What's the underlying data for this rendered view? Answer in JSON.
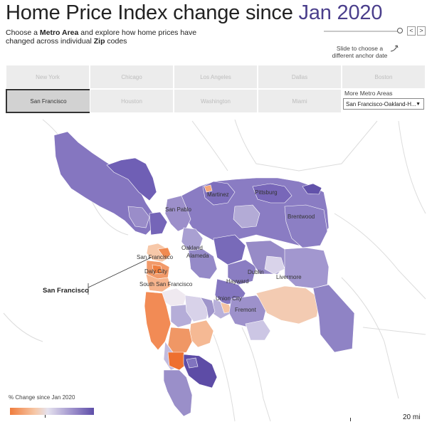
{
  "header": {
    "title_prefix": "Home Price Index change since",
    "anchor_date": "Jan 2020",
    "subtitle_p1": "Choose a ",
    "subtitle_b1": "Metro Area",
    "subtitle_p2": " and explore how home prices have changed across individual ",
    "subtitle_b2": "Zip",
    "subtitle_p3": " codes"
  },
  "slider": {
    "hint_line1": "Slide to choose a",
    "hint_line2": "different anchor date",
    "prev_label": "<",
    "next_label": ">"
  },
  "metros": {
    "row1": [
      "New York",
      "Chicago",
      "Los Angeles",
      "Dallas",
      "Boston"
    ],
    "row2": [
      "San Francisco",
      "Houston",
      "Washington",
      "Miami"
    ],
    "selected": "San Francisco"
  },
  "more_metros": {
    "label": "More Metro Areas",
    "selected_value": "San Francisco-Oakland-H..."
  },
  "map": {
    "cities": [
      "Martinez",
      "Pittsburg",
      "San Pablo",
      "Brentwood",
      "Oakland",
      "Alameda",
      "San Francisco",
      "Daly City",
      "South San Francisco",
      "Dublin",
      "Livermore",
      "Hayward",
      "Union City",
      "Fremont"
    ],
    "callout": "San Francisco"
  },
  "legend": {
    "title": "% Change since Jan 2020",
    "low_color": "#f07d3d",
    "high_color": "#5e4ea8"
  },
  "scale": {
    "label": "20 mi"
  }
}
